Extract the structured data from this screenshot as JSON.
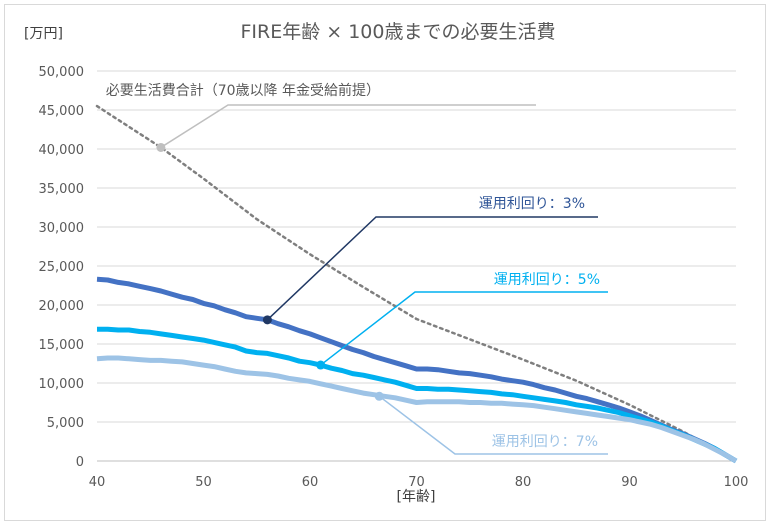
{
  "chart_data": {
    "type": "line",
    "title": "FIRE年齢 × 100歳までの必要生活費",
    "ylabel": "[万円]",
    "xlabel": "[年齢]",
    "xlim": [
      40,
      100
    ],
    "ylim": [
      0,
      50000
    ],
    "grid": "horizontal",
    "x_ticks": [
      "40",
      "50",
      "60",
      "70",
      "80",
      "90",
      "100"
    ],
    "y_ticks": [
      "0",
      "5,000",
      "10,000",
      "15,000",
      "20,000",
      "25,000",
      "30,000",
      "35,000",
      "40,000",
      "45,000",
      "50,000"
    ],
    "series": [
      {
        "name": "必要生活費合計（70歳以降 年金受給前提）",
        "color": "#7f7f7f",
        "style": "dotted",
        "x": [
          40,
          46,
          50,
          55,
          60,
          65,
          70,
          75,
          80,
          85,
          90,
          95,
          100
        ],
        "values": [
          45500,
          40200,
          36200,
          31000,
          26500,
          22300,
          18200,
          15600,
          13000,
          10300,
          7200,
          3800,
          0
        ],
        "marker": {
          "x": 46,
          "y": 40200
        }
      },
      {
        "name": "運用利回り：3%",
        "color": "#4472c4",
        "style": "solid",
        "x": [
          40,
          41,
          42,
          43,
          44,
          45,
          46,
          47,
          48,
          49,
          50,
          51,
          52,
          53,
          54,
          55,
          56,
          57,
          58,
          59,
          60,
          61,
          62,
          63,
          64,
          65,
          66,
          67,
          68,
          69,
          70,
          71,
          72,
          73,
          74,
          75,
          76,
          77,
          78,
          79,
          80,
          81,
          82,
          83,
          84,
          85,
          86,
          87,
          88,
          89,
          90,
          91,
          92,
          93,
          94,
          95,
          96,
          97,
          98,
          99,
          100
        ],
        "values": [
          23300,
          23200,
          22900,
          22700,
          22400,
          22100,
          21800,
          21400,
          21000,
          20700,
          20200,
          19900,
          19400,
          19000,
          18500,
          18300,
          18100,
          17600,
          17200,
          16700,
          16300,
          15800,
          15300,
          14800,
          14300,
          13900,
          13400,
          13000,
          12600,
          12200,
          11800,
          11800,
          11700,
          11500,
          11300,
          11200,
          11000,
          10800,
          10500,
          10300,
          10100,
          9800,
          9400,
          9100,
          8700,
          8300,
          8000,
          7600,
          7200,
          6800,
          6300,
          5800,
          5200,
          4600,
          4000,
          3500,
          2900,
          2300,
          1600,
          800,
          0
        ],
        "marker": {
          "x": 56,
          "y": 18100
        }
      },
      {
        "name": "運用利回り：5%",
        "color": "#00b0f0",
        "style": "solid",
        "x": [
          40,
          41,
          42,
          43,
          44,
          45,
          46,
          47,
          48,
          49,
          50,
          51,
          52,
          53,
          54,
          55,
          56,
          57,
          58,
          59,
          60,
          61,
          62,
          63,
          64,
          65,
          66,
          67,
          68,
          69,
          70,
          71,
          72,
          73,
          74,
          75,
          76,
          77,
          78,
          79,
          80,
          81,
          82,
          83,
          84,
          85,
          86,
          87,
          88,
          89,
          90,
          91,
          92,
          93,
          94,
          95,
          96,
          97,
          98,
          99,
          100
        ],
        "values": [
          16900,
          16900,
          16800,
          16800,
          16600,
          16500,
          16300,
          16100,
          15900,
          15700,
          15500,
          15200,
          14900,
          14600,
          14100,
          13900,
          13800,
          13500,
          13200,
          12800,
          12600,
          12300,
          11900,
          11600,
          11200,
          11000,
          10700,
          10400,
          10100,
          9700,
          9300,
          9300,
          9200,
          9200,
          9100,
          9000,
          8900,
          8800,
          8600,
          8500,
          8300,
          8100,
          7900,
          7700,
          7500,
          7200,
          7000,
          6800,
          6500,
          6200,
          5800,
          5400,
          5000,
          4500,
          3900,
          3400,
          2800,
          2200,
          1600,
          800,
          0
        ],
        "marker": {
          "x": 61,
          "y": 12300
        }
      },
      {
        "name": "運用利回り：7%",
        "color": "#9dc3e6",
        "style": "solid",
        "x": [
          40,
          41,
          42,
          43,
          44,
          45,
          46,
          47,
          48,
          49,
          50,
          51,
          52,
          53,
          54,
          55,
          56,
          57,
          58,
          59,
          60,
          61,
          62,
          63,
          64,
          65,
          66,
          67,
          68,
          69,
          70,
          71,
          72,
          73,
          74,
          75,
          76,
          77,
          78,
          79,
          80,
          81,
          82,
          83,
          84,
          85,
          86,
          87,
          88,
          89,
          90,
          91,
          92,
          93,
          94,
          95,
          96,
          97,
          98,
          99,
          100
        ],
        "values": [
          13100,
          13200,
          13200,
          13100,
          13000,
          12900,
          12900,
          12800,
          12700,
          12500,
          12300,
          12100,
          11800,
          11500,
          11300,
          11200,
          11100,
          10900,
          10600,
          10400,
          10200,
          9900,
          9600,
          9300,
          9000,
          8700,
          8500,
          8300,
          8100,
          7800,
          7500,
          7600,
          7600,
          7600,
          7600,
          7500,
          7500,
          7400,
          7400,
          7300,
          7200,
          7100,
          6900,
          6700,
          6500,
          6300,
          6100,
          5900,
          5700,
          5500,
          5300,
          5000,
          4700,
          4300,
          3800,
          3300,
          2800,
          2200,
          1500,
          800,
          0
        ],
        "marker": {
          "x": 66.5,
          "y": 8300
        }
      }
    ],
    "annotations": [
      {
        "text": "必要生活費合計（70歳以降 年金受給前提）",
        "series": 0,
        "color": "#595959",
        "line_color": "#bfbfbf"
      },
      {
        "text": "運用利回り：3%",
        "series": 1,
        "color": "#2f5597",
        "line_color": "#203864"
      },
      {
        "text": "運用利回り：5%",
        "series": 2,
        "color": "#00b0f0",
        "line_color": "#00b0f0"
      },
      {
        "text": "運用利回り：7%",
        "series": 3,
        "color": "#9dc3e6",
        "line_color": "#9dc3e6"
      }
    ]
  }
}
